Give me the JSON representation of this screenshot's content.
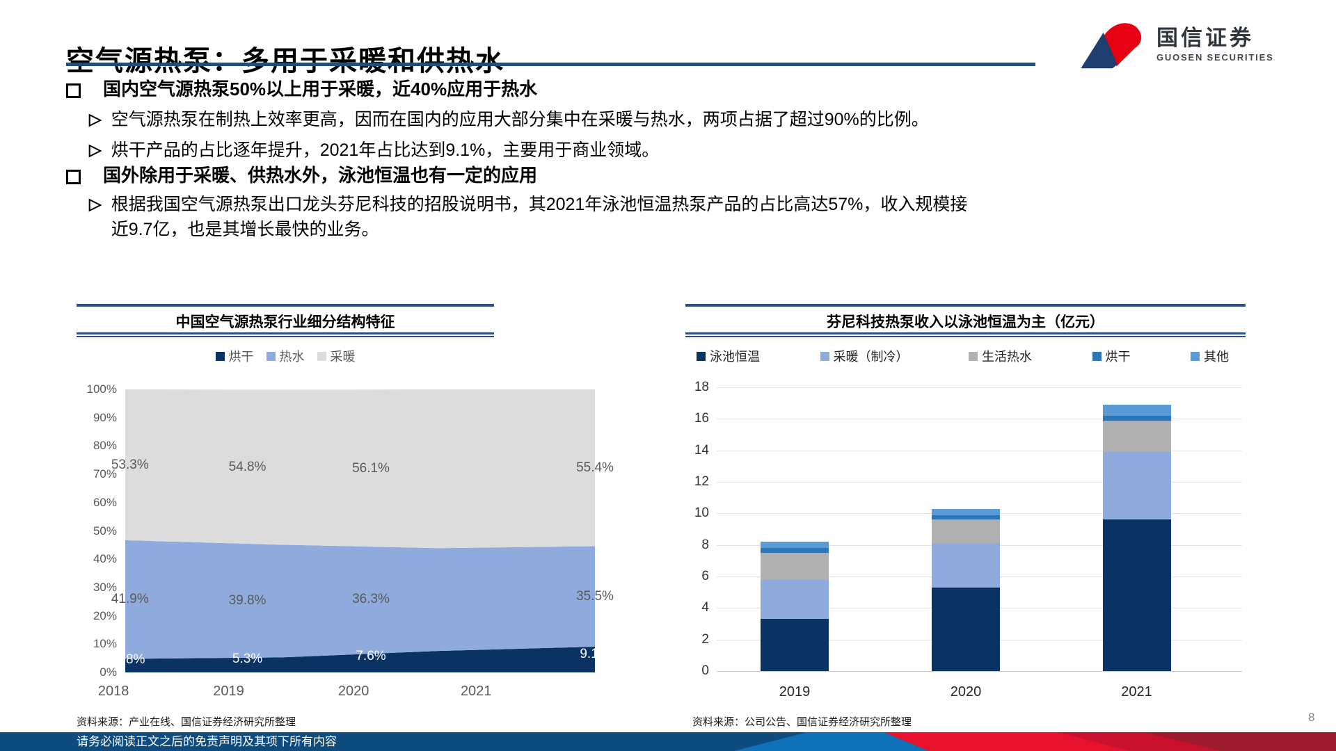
{
  "header": {
    "title": "空气源热泵：多用于采暖和供热水"
  },
  "logo": {
    "cn": "国信证券",
    "en": "GUOSEN SECURITIES"
  },
  "markers": {
    "sub": "▷"
  },
  "bullets": [
    {
      "text": "国内空气源热泵50%以上用于采暖，近40%应用于热水",
      "subs": [
        "空气源热泵在制热上效率更高，因而在国内的应用大部分集中在采暖与热水，两项占据了超过90%的比例。",
        "烘干产品的占比逐年提升，2021年占比达到9.1%，主要用于商业领域。"
      ]
    },
    {
      "text": "国外除用于采暖、供热水外，泳池恒温也有一定的应用",
      "subs": [
        "根据我国空气源热泵出口龙头芬尼科技的招股说明书，其2021年泳池恒温热泵产品的占比高达57%，收入规模接近9.7亿，也是其增长最快的业务。"
      ]
    }
  ],
  "chart_data": [
    {
      "type": "area",
      "stacked": true,
      "title": "中国空气源热泵行业细分结构特征",
      "categories": [
        "2018",
        "2019",
        "2020",
        "2021"
      ],
      "series": [
        {
          "name": "烘干",
          "color": "#0A3363",
          "label_color": "#FFFFFF",
          "values": [
            4.8,
            5.3,
            7.6,
            9.1
          ]
        },
        {
          "name": "热水",
          "color": "#8FAADC",
          "label_color": "#595959",
          "values": [
            41.9,
            39.8,
            36.3,
            35.5
          ]
        },
        {
          "name": "采暖",
          "color": "#DCDCDC",
          "label_color": "#595959",
          "values": [
            53.3,
            54.8,
            56.1,
            55.4
          ]
        }
      ],
      "ylim": [
        0,
        100
      ],
      "ytick_step": 10,
      "ytick_suffix": "%",
      "grid": false,
      "legend_position": "top",
      "source": "资料来源：产业在线、国信证券经济研究所整理"
    },
    {
      "type": "bar",
      "stacked": true,
      "title": "芬尼科技热泵收入以泳池恒温为主（亿元）",
      "categories": [
        "2019",
        "2020",
        "2021"
      ],
      "series": [
        {
          "name": "泳池恒温",
          "color": "#0A3363",
          "values": [
            3.3,
            5.3,
            9.6
          ]
        },
        {
          "name": "采暖（制冷）",
          "color": "#8FAADC",
          "values": [
            2.5,
            2.8,
            4.3
          ]
        },
        {
          "name": "生活热水",
          "color": "#B0B0B0",
          "values": [
            1.7,
            1.5,
            2.0
          ]
        },
        {
          "name": "烘干",
          "color": "#2E75B6",
          "values": [
            0.3,
            0.3,
            0.3
          ]
        },
        {
          "name": "其他",
          "color": "#5B9BD5",
          "values": [
            0.4,
            0.4,
            0.7
          ]
        }
      ],
      "ylim": [
        0,
        18
      ],
      "ytick_step": 2,
      "ytick_suffix": "",
      "grid": true,
      "legend_position": "top",
      "source": "资料来源：公司公告、国信证券经济研究所整理"
    }
  ],
  "footer": {
    "disclaimer": "请务必阅读正文之后的免责声明及其项下所有内容",
    "page_number": "8"
  },
  "colors": {
    "heading_rule": "#1F4E79",
    "chart_rule": "#2B4E8C",
    "footer_bar": "#0E4C7F",
    "band_blue": "#0F72B9",
    "band_red": "#E8112D",
    "band_red_mid": "#C9112B",
    "band_red_dark": "#9C1B2E",
    "logo_red": "#E60012",
    "logo_navy": "#1D3E6E",
    "axis_text": "#595959"
  }
}
